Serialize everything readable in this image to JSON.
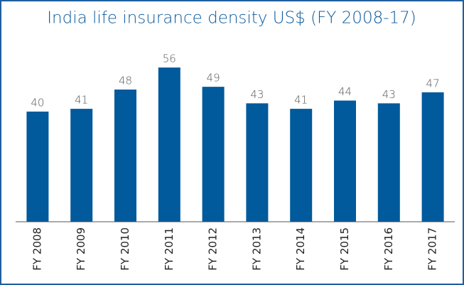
{
  "chart_data": {
    "type": "bar",
    "title": "India life insurance density US$ (FY 2008-17)",
    "categories": [
      "FY 2008",
      "FY 2009",
      "FY 2010",
      "FY 2011",
      "FY 2012",
      "FY 2013",
      "FY 2014",
      "FY 2015",
      "FY 2016",
      "FY 2017"
    ],
    "values": [
      40,
      41,
      48,
      56,
      49,
      43,
      41,
      44,
      43,
      47
    ],
    "color": "#005a9c"
  }
}
